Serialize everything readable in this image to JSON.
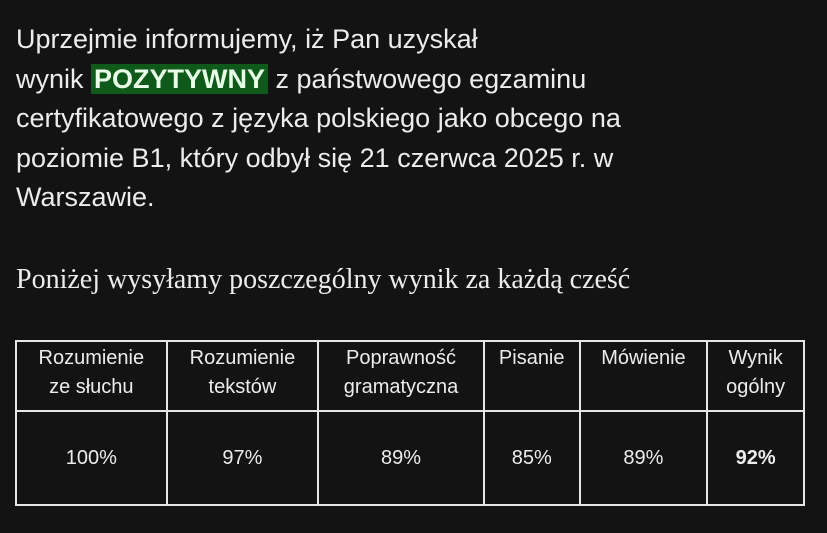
{
  "intro": {
    "line1": "Uprzejmie informujemy, iż Pan uzyskał",
    "line2_before": "wynik ",
    "highlight": "POZYTYWNY",
    "line2_after": " z państwowego egzaminu",
    "line3": "certyfikatowego z języka polskiego jako obcego na",
    "line4": "poziomie B1, który odbył się 21 czerwca 2025 r. w",
    "line5": "Warszawie."
  },
  "subtitle": "Poniżej wysyłamy poszczególny wynik za każdą cześć",
  "table": {
    "headers": [
      {
        "l1": "Rozumienie",
        "l2": "ze słuchu"
      },
      {
        "l1": "Rozumienie",
        "l2": "tekstów"
      },
      {
        "l1": "Poprawność",
        "l2": "gramatyczna"
      },
      {
        "l1": "Pisanie",
        "l2": ""
      },
      {
        "l1": "Mówienie",
        "l2": ""
      },
      {
        "l1": "Wynik",
        "l2": "ogólny"
      }
    ],
    "values": [
      "100%",
      "97%",
      "89%",
      "85%",
      "89%",
      "92%"
    ]
  },
  "colors": {
    "background": "#131313",
    "highlight": "#0f5a1a"
  }
}
